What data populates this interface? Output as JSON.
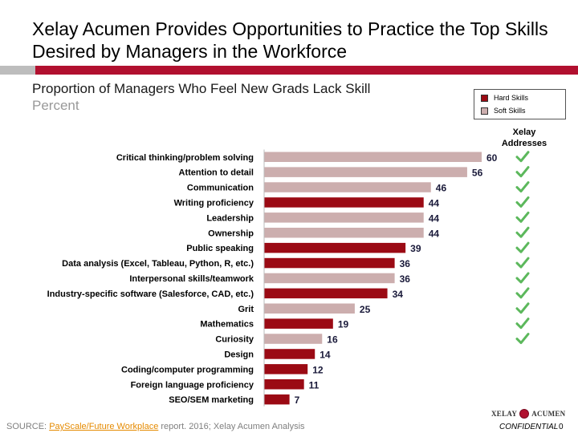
{
  "slide": {
    "title": "Xelay Acumen Provides Opportunities to Practice the Top Skills Desired by Managers in the Workforce",
    "subtitle": "Proportion of Managers Who Feel New Grads Lack Skill",
    "units": "Percent",
    "addresses_header": "Xelay Addresses",
    "source_prefix": "SOURCE: ",
    "source_link": "PayScale/Future Workplace",
    "source_suffix": " report. 2016; Xelay Acumen Analysis",
    "logo_left": "XELAY",
    "logo_right": "ACUMEN",
    "confidential": "CONFIDENTIAL",
    "page_number": "0"
  },
  "colors": {
    "accent": "#b1102f",
    "hard_skills": "#9b0a14",
    "soft_skills": "#ccaeae",
    "check": "#5cb85c"
  },
  "legend": [
    {
      "label": "Hard Skills",
      "color": "#9b0a14"
    },
    {
      "label": "Soft Skills",
      "color": "#ccaeae"
    }
  ],
  "chart_data": {
    "type": "bar",
    "orientation": "horizontal",
    "title": "Proportion of Managers Who Feel New Grads Lack Skill",
    "ylabel": "Percent",
    "xlim": [
      0,
      60
    ],
    "grid": false,
    "legend_position": "top-right",
    "categories": [
      "Critical thinking/problem solving",
      "Attention to detail",
      "Communication",
      "Writing proficiency",
      "Leadership",
      "Ownership",
      "Public speaking",
      "Data analysis (Excel, Tableau, Python, R, etc.)",
      "Interpersonal skills/teamwork",
      "Industry-specific software (Salesforce, CAD, etc.)",
      "Grit",
      "Mathematics",
      "Curiosity",
      "Design",
      "Coding/computer programming",
      "Foreign language proficiency",
      "SEO/SEM marketing"
    ],
    "values": [
      60,
      56,
      46,
      44,
      44,
      44,
      39,
      36,
      36,
      34,
      25,
      19,
      16,
      14,
      12,
      11,
      7
    ],
    "skill_type": [
      "Soft Skills",
      "Soft Skills",
      "Soft Skills",
      "Hard Skills",
      "Soft Skills",
      "Soft Skills",
      "Hard Skills",
      "Hard Skills",
      "Soft Skills",
      "Hard Skills",
      "Soft Skills",
      "Hard Skills",
      "Soft Skills",
      "Hard Skills",
      "Hard Skills",
      "Hard Skills",
      "Hard Skills"
    ],
    "xelay_addresses": [
      true,
      true,
      true,
      true,
      true,
      true,
      true,
      true,
      true,
      true,
      true,
      true,
      true,
      false,
      false,
      false,
      false
    ]
  }
}
